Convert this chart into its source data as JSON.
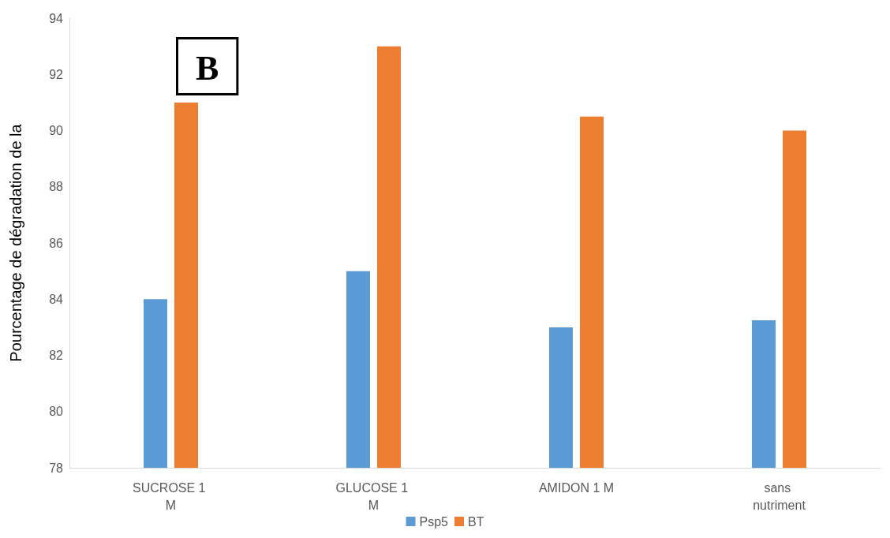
{
  "chart_data": {
    "type": "bar",
    "categories": [
      "SUCROSE 1 M",
      "GLUCOSE 1 M",
      "AMIDON 1 M",
      "sans nutriment"
    ],
    "series": [
      {
        "name": "Psp5",
        "color": "#5b9bd5",
        "values": [
          84,
          85,
          83,
          83.25
        ]
      },
      {
        "name": "BT",
        "color": "#ed7d31",
        "values": [
          91,
          93,
          90.5,
          90
        ]
      }
    ],
    "ylabel": "Pourcentage de dégradation de la",
    "ylim": [
      78,
      94
    ],
    "yticks": [
      78,
      80,
      82,
      84,
      86,
      88,
      90,
      92,
      94
    ],
    "annotations": [
      "B"
    ],
    "grid": false,
    "legend": "bottom"
  }
}
